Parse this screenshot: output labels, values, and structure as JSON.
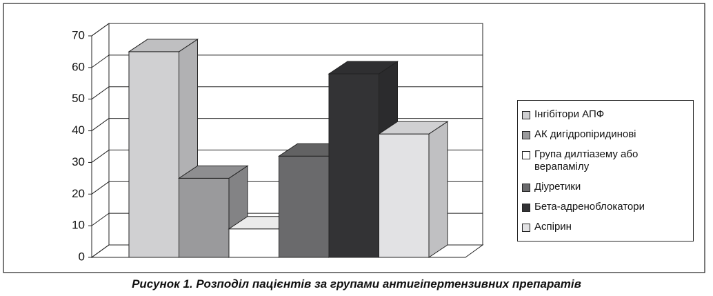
{
  "chart_data": {
    "type": "bar3d",
    "title": "Рисунок 1. Розподіл пацієнтів за групами антигіпертензивних препаратів",
    "ylim": [
      0,
      70
    ],
    "yticks": [
      0,
      10,
      20,
      30,
      40,
      50,
      60,
      70
    ],
    "grid": true,
    "series": [
      {
        "name": "Інгібітори АПФ",
        "color": "#d0d0d2",
        "values": [
          65
        ]
      },
      {
        "name": "АК дигідропіридинові",
        "color": "#9a9a9c",
        "values": [
          25
        ]
      },
      {
        "name": "Група дилтіазему або верапамілу",
        "color": "#ffffff",
        "values": [
          9
        ]
      },
      {
        "name": "Діуретики",
        "color": "#6a6a6c",
        "values": [
          32
        ]
      },
      {
        "name": "Бета-адреноблокатори",
        "color": "#333335",
        "values": [
          58
        ]
      },
      {
        "name": "Аспірин",
        "color": "#e2e2e4",
        "values": [
          39
        ]
      }
    ]
  }
}
